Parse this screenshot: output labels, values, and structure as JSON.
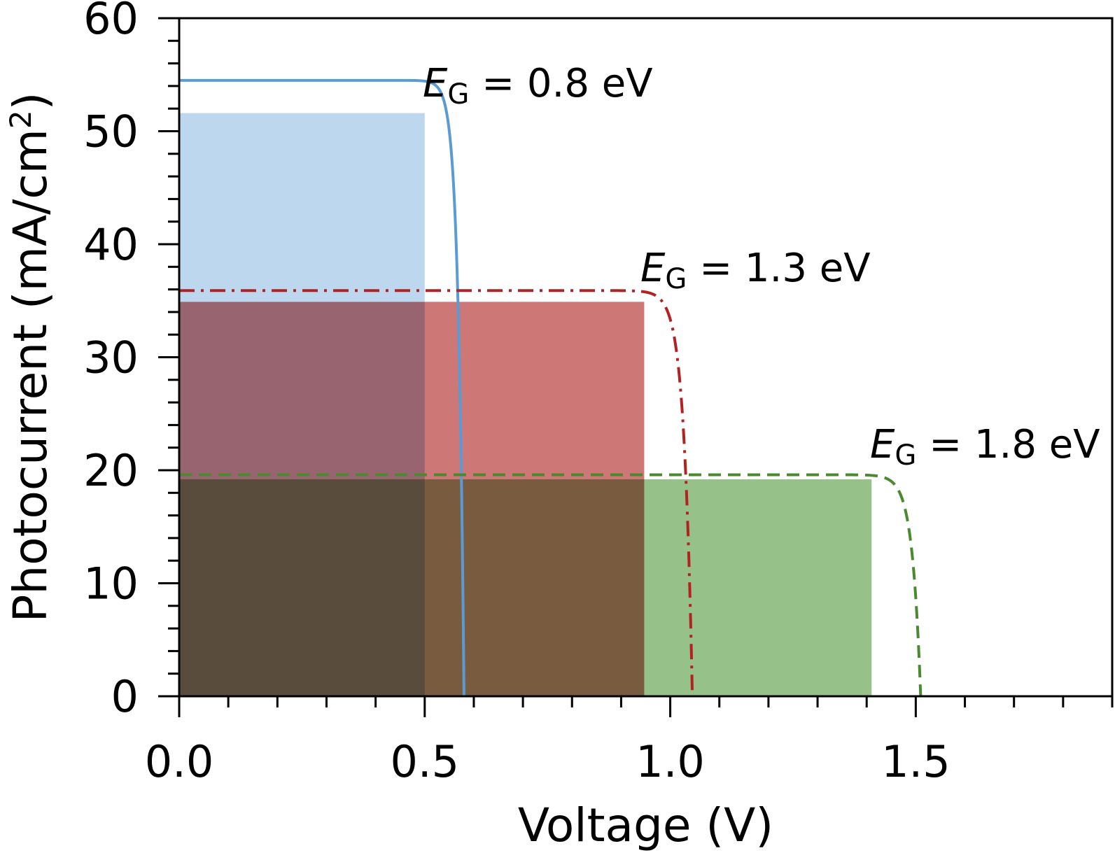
{
  "chart_data": {
    "type": "line",
    "xlabel": "Voltage (V)",
    "ylabel": {
      "main": "Photocurrent (mA/cm",
      "sup": "2",
      "close": ")"
    },
    "xlim": [
      0.0,
      1.9
    ],
    "ylim": [
      0,
      60
    ],
    "x_ticks": [
      0.0,
      0.5,
      1.0,
      1.5
    ],
    "x_tick_labels": [
      "0.0",
      "0.5",
      "1.0",
      "1.5"
    ],
    "x_minor_step": 0.1,
    "y_ticks": [
      0,
      10,
      20,
      30,
      40,
      50,
      60
    ],
    "y_tick_labels": [
      "0",
      "10",
      "20",
      "30",
      "40",
      "50",
      "60"
    ],
    "y_minor_step": 2,
    "grid": false,
    "legend": "none",
    "series": [
      {
        "label": {
          "sym": "E",
          "sub": "G",
          "text": " = 0.8 eV"
        },
        "color": "#5b9bd5",
        "style": "solid",
        "jsc": 54.5,
        "voc": 0.58,
        "n_vt": 0.012,
        "mpp": {
          "v": 0.5,
          "j": 51.6
        },
        "fill": "#bcd7ee"
      },
      {
        "label": {
          "sym": "E",
          "sub": "G",
          "text": " = 1.3 eV"
        },
        "color": "#b22222",
        "style": "dashdot",
        "jsc": 35.9,
        "voc": 1.045,
        "n_vt": 0.017,
        "mpp": {
          "v": 0.947,
          "j": 34.9
        },
        "fill": "#c65f5f"
      },
      {
        "label": {
          "sym": "E",
          "sub": "G",
          "text": " = 1.8 eV"
        },
        "color": "#4a8a2e",
        "style": "dashed",
        "jsc": 19.6,
        "voc": 1.51,
        "n_vt": 0.017,
        "mpp": {
          "v": 1.41,
          "j": 19.2
        },
        "fill": "#84b874"
      }
    ]
  }
}
